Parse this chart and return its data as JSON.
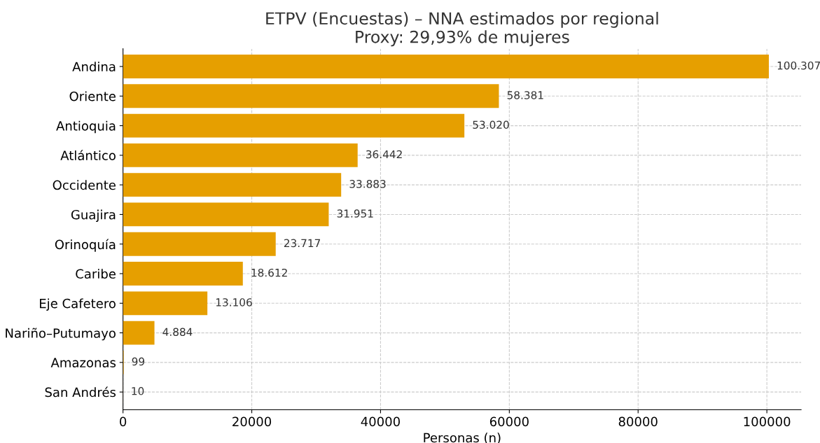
{
  "chart_data": {
    "type": "bar",
    "orientation": "horizontal",
    "title": "ETPV (Encuestas) – NNA estimados por regional\nProxy: 29,93% de mujeres",
    "xlabel": "Personas (n)",
    "categories": [
      "Andina",
      "Oriente",
      "Antioquia",
      "Atlántico",
      "Occidente",
      "Guajira",
      "Orinoquía",
      "Caribe",
      "Eje Cafetero",
      "Nariño–Putumayo",
      "Amazonas",
      "San Andrés"
    ],
    "values": [
      100307,
      58381,
      53020,
      36442,
      33883,
      31951,
      23717,
      18612,
      13106,
      4884,
      99,
      10
    ],
    "value_labels": [
      "100.307",
      "58.381",
      "53.020",
      "36.442",
      "33.883",
      "31.951",
      "23.717",
      "18.612",
      "13.106",
      "4.884",
      "99",
      "10"
    ],
    "color": "#e69f00",
    "xlim": [
      0,
      105322
    ],
    "xticks": [
      0,
      20000,
      40000,
      60000,
      80000,
      100000
    ],
    "grid": true
  }
}
